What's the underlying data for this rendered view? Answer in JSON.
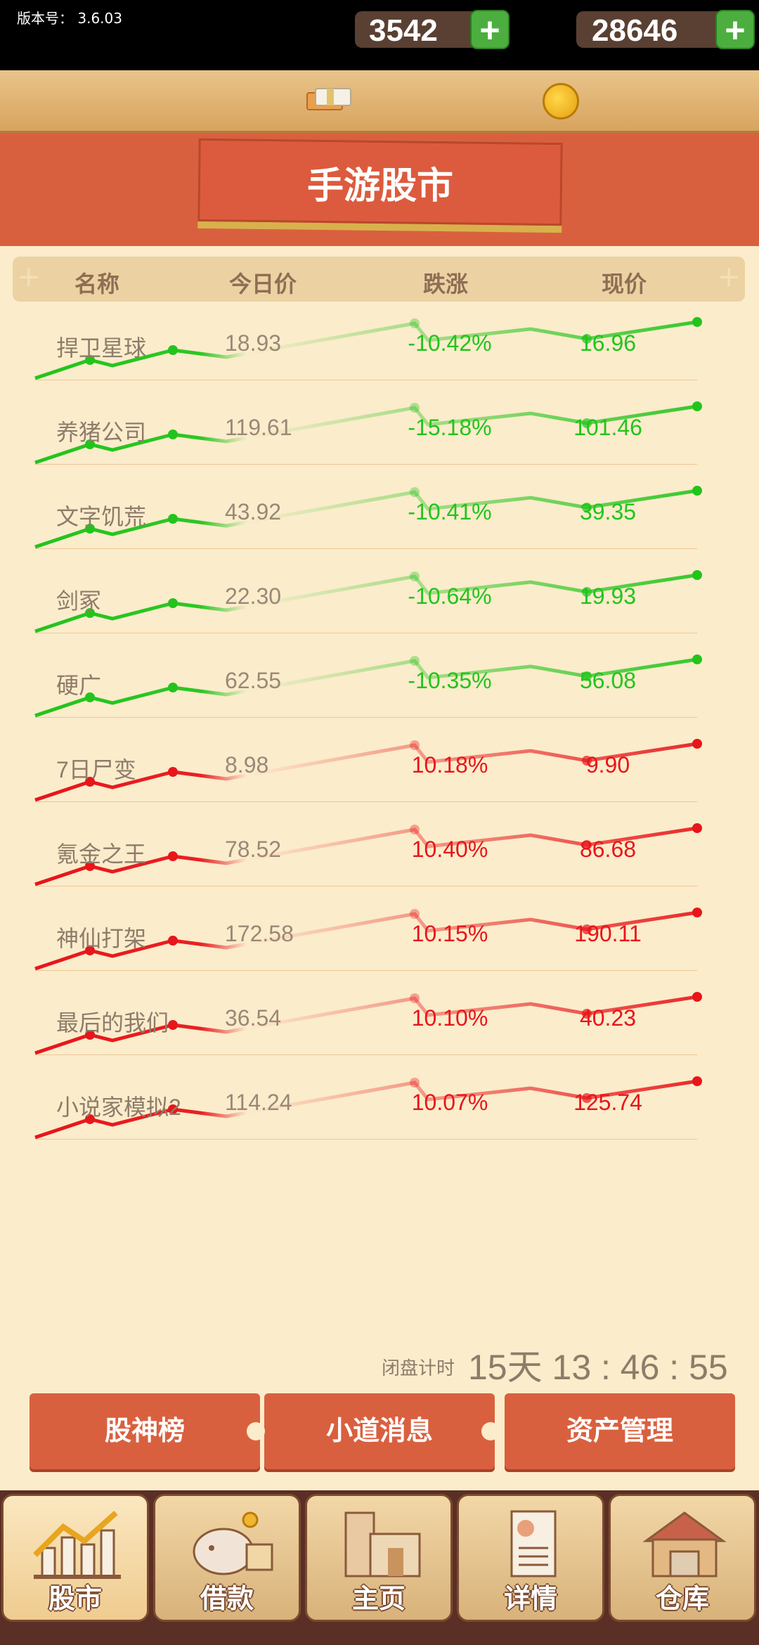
{
  "status": {
    "version_label": "版本号：",
    "version": "3.6.03"
  },
  "resources": {
    "cash": "3542",
    "coins": "28646"
  },
  "page_title": "手游股市",
  "table": {
    "headers": [
      "名称",
      "今日价",
      "跌涨",
      "现价"
    ],
    "rows": [
      {
        "name": "捍卫星球",
        "today": "18.93",
        "change": "-10.42%",
        "current": "16.96",
        "trend": "down"
      },
      {
        "name": "养猪公司",
        "today": "119.61",
        "change": "-15.18%",
        "current": "101.46",
        "trend": "down"
      },
      {
        "name": "文字饥荒",
        "today": "43.92",
        "change": "-10.41%",
        "current": "39.35",
        "trend": "down"
      },
      {
        "name": "剑冢",
        "today": "22.30",
        "change": "-10.64%",
        "current": "19.93",
        "trend": "down"
      },
      {
        "name": "硬广",
        "today": "62.55",
        "change": "-10.35%",
        "current": "56.08",
        "trend": "down"
      },
      {
        "name": "7日尸变",
        "today": "8.98",
        "change": "10.18%",
        "current": "9.90",
        "trend": "up"
      },
      {
        "name": "氪金之王",
        "today": "78.52",
        "change": "10.40%",
        "current": "86.68",
        "trend": "up"
      },
      {
        "name": "神仙打架",
        "today": "172.58",
        "change": "10.15%",
        "current": "190.11",
        "trend": "up"
      },
      {
        "name": "最后的我们",
        "today": "36.54",
        "change": "10.10%",
        "current": "40.23",
        "trend": "up"
      },
      {
        "name": "小说家模拟2",
        "today": "114.24",
        "change": "10.07%",
        "current": "125.74",
        "trend": "up"
      }
    ]
  },
  "timer": {
    "label": "闭盘计时",
    "value": "15天 13 : 46 : 55"
  },
  "actions": [
    "股神榜",
    "小道消息",
    "资产管理"
  ],
  "nav": [
    "股市",
    "借款",
    "主页",
    "详情",
    "仓库"
  ],
  "colors": {
    "down": "#22c41c",
    "up": "#e8151a",
    "accent": "#d9603f"
  }
}
